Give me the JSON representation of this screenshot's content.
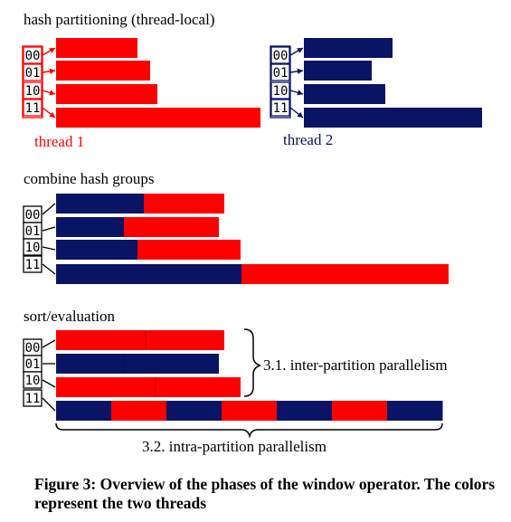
{
  "colors": {
    "red": "#ff0000",
    "blue": "#0a1464",
    "black": "#000000"
  },
  "partition_keys": [
    "00",
    "01",
    "10",
    "11"
  ],
  "section1": {
    "title": "hash partitioning (thread-local)",
    "thread1_label": "thread 1",
    "thread2_label": "thread 2",
    "thread1_sizes": [
      90,
      104,
      112,
      226
    ],
    "thread2_sizes": [
      98,
      75,
      90,
      197
    ]
  },
  "section2": {
    "title": "combine hash groups",
    "groups": [
      {
        "blue": 97,
        "red": 89
      },
      {
        "blue": 75,
        "red": 105
      },
      {
        "blue": 90,
        "red": 114
      },
      {
        "blue": 205,
        "red": 229
      }
    ]
  },
  "section3": {
    "title": "sort/evaluation",
    "inter_label": "3.1. inter-partition parallelism",
    "intra_label": "3.2. intra-partition parallelism",
    "inter_rows": [
      {
        "color": "red",
        "split": 99
      },
      {
        "color": "blue",
        "split": 75
      },
      {
        "color": "red",
        "split": 110
      }
    ],
    "intra_segments": [
      "blue",
      "red",
      "blue",
      "red",
      "blue",
      "red",
      "blue"
    ]
  },
  "caption": "Figure 3: Overview of the phases of the window operator. The colors represent the two threads"
}
